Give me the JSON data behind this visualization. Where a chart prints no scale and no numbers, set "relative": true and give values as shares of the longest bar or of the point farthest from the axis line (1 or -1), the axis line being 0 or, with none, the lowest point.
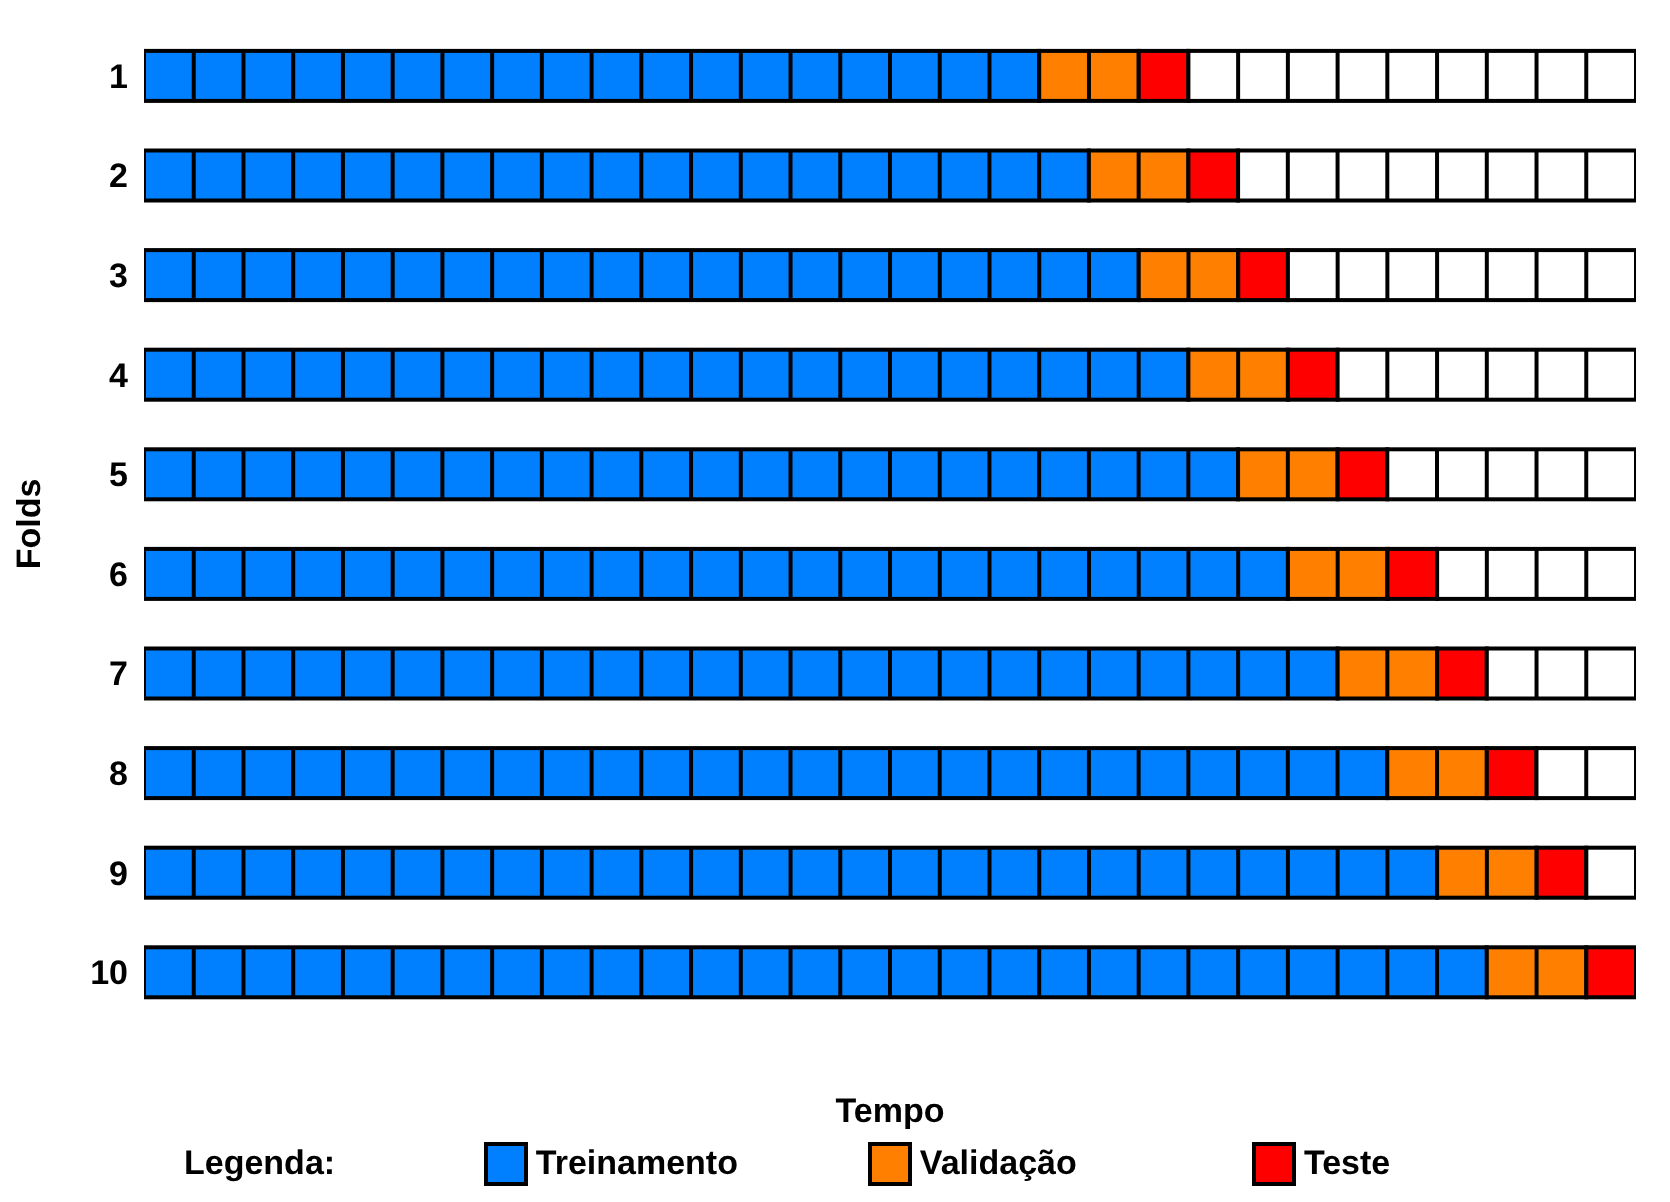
{
  "chart_data": {
    "type": "bar",
    "orientation": "horizontal",
    "stacked": true,
    "relative": true,
    "xlabel": "Tempo",
    "ylabel": "Folds",
    "legend_title": "Legenda:",
    "legend": "bottom",
    "categories": [
      "1",
      "2",
      "3",
      "4",
      "5",
      "6",
      "7",
      "8",
      "9",
      "10"
    ],
    "series": [
      {
        "name": "Treinamento",
        "color": "#0080ff",
        "values": [
          0.6,
          0.6333,
          0.6667,
          0.7,
          0.7333,
          0.7667,
          0.8,
          0.8333,
          0.8667,
          0.9
        ]
      },
      {
        "name": "Validação",
        "color": "#ff8000",
        "values": [
          0.0667,
          0.0667,
          0.0667,
          0.0667,
          0.0667,
          0.0667,
          0.0667,
          0.0667,
          0.0667,
          0.0667
        ]
      },
      {
        "name": "Teste",
        "color": "#ff0000",
        "values": [
          0.0333,
          0.0333,
          0.0333,
          0.0333,
          0.0333,
          0.0333,
          0.0333,
          0.0333,
          0.0333,
          0.0333
        ]
      },
      {
        "color": "#ffffff",
        "values": [
          0.3,
          0.2667,
          0.2333,
          0.2,
          0.1667,
          0.1333,
          0.1,
          0.0667,
          0.0333,
          0
        ]
      }
    ]
  }
}
